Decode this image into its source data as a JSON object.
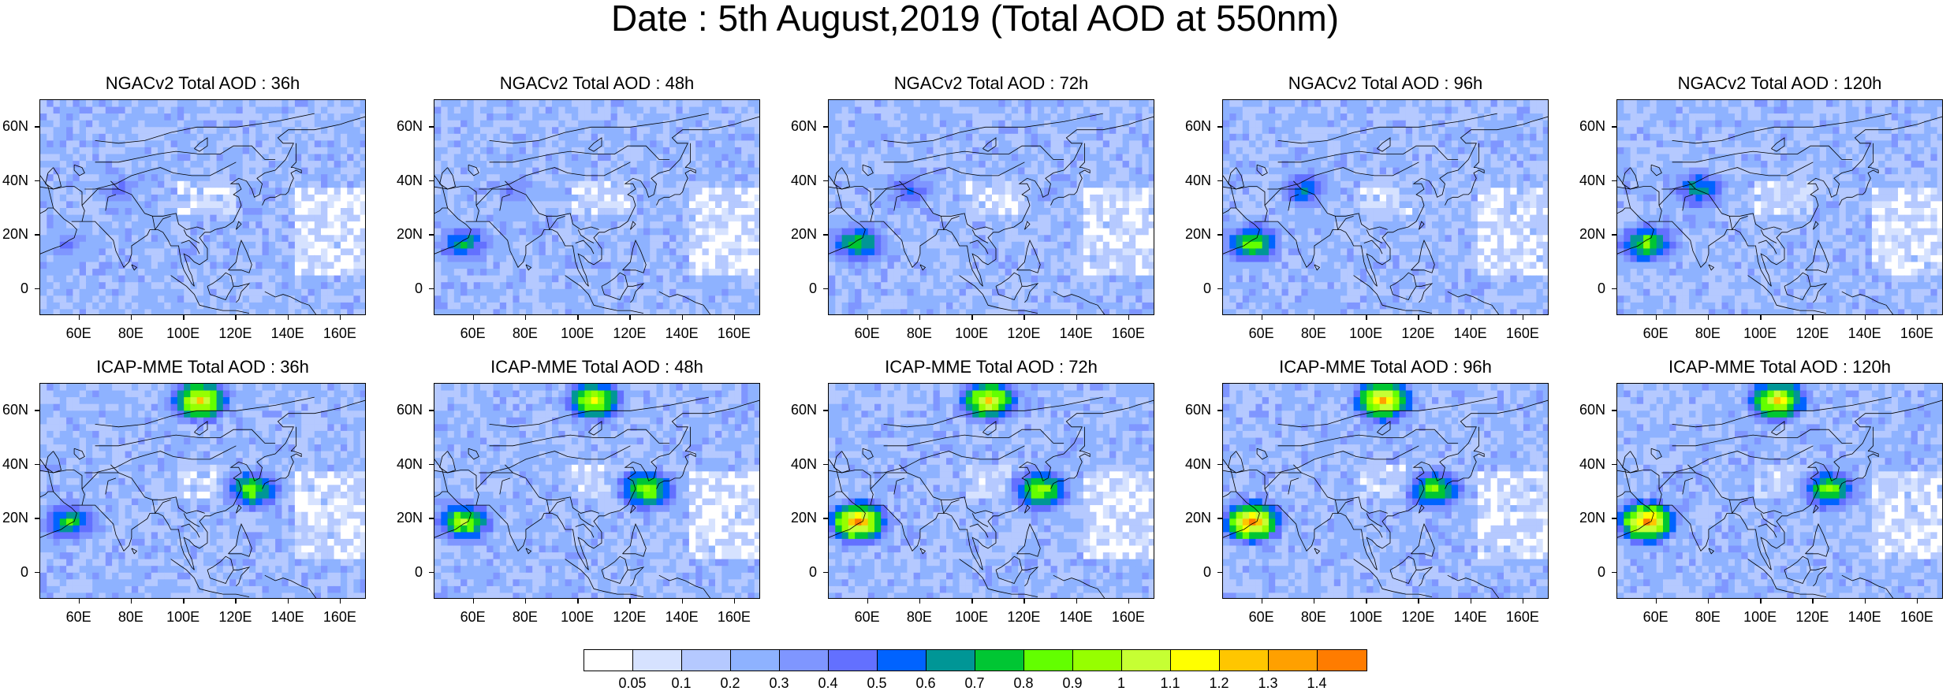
{
  "title": "Date : 5th August,2019 (Total AOD at 550nm)",
  "panels": [
    {
      "title": "NGACv2 Total AOD : 36h",
      "model": "NGACv2",
      "lead": "36h"
    },
    {
      "title": "NGACv2 Total AOD : 48h",
      "model": "NGACv2",
      "lead": "48h"
    },
    {
      "title": "NGACv2 Total AOD : 72h",
      "model": "NGACv2",
      "lead": "72h"
    },
    {
      "title": "NGACv2 Total AOD : 96h",
      "model": "NGACv2",
      "lead": "96h"
    },
    {
      "title": "NGACv2 Total AOD : 120h",
      "model": "NGACv2",
      "lead": "120h"
    },
    {
      "title": "ICAP-MME Total AOD : 36h",
      "model": "ICAP-MME",
      "lead": "36h"
    },
    {
      "title": "ICAP-MME Total AOD : 48h",
      "model": "ICAP-MME",
      "lead": "48h"
    },
    {
      "title": "ICAP-MME Total AOD : 72h",
      "model": "ICAP-MME",
      "lead": "72h"
    },
    {
      "title": "ICAP-MME Total AOD : 96h",
      "model": "ICAP-MME",
      "lead": "96h"
    },
    {
      "title": "ICAP-MME Total AOD : 120h",
      "model": "ICAP-MME",
      "lead": "120h"
    }
  ],
  "chart_data": {
    "type": "heatmap",
    "title": "Date : 5th August,2019 (Total AOD at 550nm)",
    "variable": "Total AOD at 550nm",
    "date": "5th August,2019",
    "layout": "2 rows x 5 columns (rows: NGACv2, ICAP-MME; columns: forecast lead 36h, 48h, 72h, 96h, 120h)",
    "map_domain": {
      "lon_range": [
        45,
        170
      ],
      "lat_range": [
        -10,
        70
      ]
    },
    "x_ticks": [
      "60E",
      "80E",
      "100E",
      "120E",
      "140E",
      "160E"
    ],
    "x_tick_values": [
      60,
      80,
      100,
      120,
      140,
      160
    ],
    "y_ticks": [
      "60N",
      "40N",
      "20N",
      "0"
    ],
    "y_tick_values": [
      60,
      40,
      20,
      0
    ],
    "colorbar": {
      "labels": [
        "0.05",
        "0.1",
        "0.2",
        "0.3",
        "0.4",
        "0.5",
        "0.6",
        "0.7",
        "0.8",
        "0.9",
        "1",
        "1.1",
        "1.2",
        "1.3",
        "1.4"
      ],
      "colors": [
        "#ffffff",
        "#d6e2ff",
        "#b5c9ff",
        "#8eb2ff",
        "#7f96ff",
        "#6370ff",
        "#0063ff",
        "#009696",
        "#00c633",
        "#63ff00",
        "#96ff00",
        "#c6ff33",
        "#ffff00",
        "#ffc600",
        "#ffa000",
        "#ff7c00",
        "#ff1900"
      ]
    },
    "hotspots_note_free": true,
    "hotspots": {
      "NGACv2": [
        {
          "lon": 55,
          "lat": 18,
          "level": [
            0.4,
            0.7,
            0.8,
            0.9,
            0.9
          ]
        },
        {
          "lon": 75,
          "lat": 38,
          "level": [
            0.4,
            0.4,
            0.5,
            0.6,
            0.7
          ]
        }
      ],
      "ICAP-MME": [
        {
          "lon": 55,
          "lat": 20,
          "level": [
            0.8,
            1.0,
            1.4,
            1.4,
            1.4
          ]
        },
        {
          "lon": 105,
          "lat": 65,
          "level": [
            1.2,
            1.1,
            1.2,
            1.3,
            1.2
          ]
        },
        {
          "lon": 125,
          "lat": 32,
          "level": [
            0.9,
            1.0,
            1.0,
            0.9,
            0.9
          ]
        }
      ]
    }
  }
}
